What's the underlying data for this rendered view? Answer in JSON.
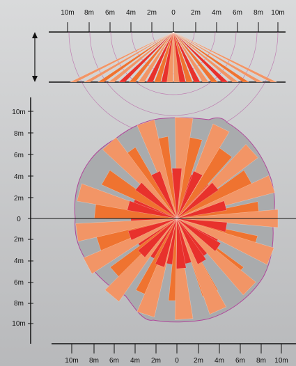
{
  "side_view": {
    "top_axis_labels": [
      "10m",
      "8m",
      "6m",
      "4m",
      "2m",
      "0",
      "2m",
      "4m",
      "6m",
      "8m",
      "10m"
    ]
  },
  "top_view": {
    "y_axis_labels": [
      "10m",
      "8m",
      "6m",
      "4m",
      "2m",
      "0",
      "2m",
      "4m",
      "6m",
      "8m",
      "10m"
    ],
    "bottom_axis_labels": [
      "10m",
      "8m",
      "6m",
      "4m",
      "2m",
      "0",
      "2m",
      "4m",
      "6m",
      "8m",
      "10m"
    ]
  },
  "colors": {
    "zone_far": "#f29566",
    "zone_mid": "#ef7330",
    "zone_near": "#e8312c",
    "boundary": "#b0479b",
    "axis": "#111111"
  }
}
